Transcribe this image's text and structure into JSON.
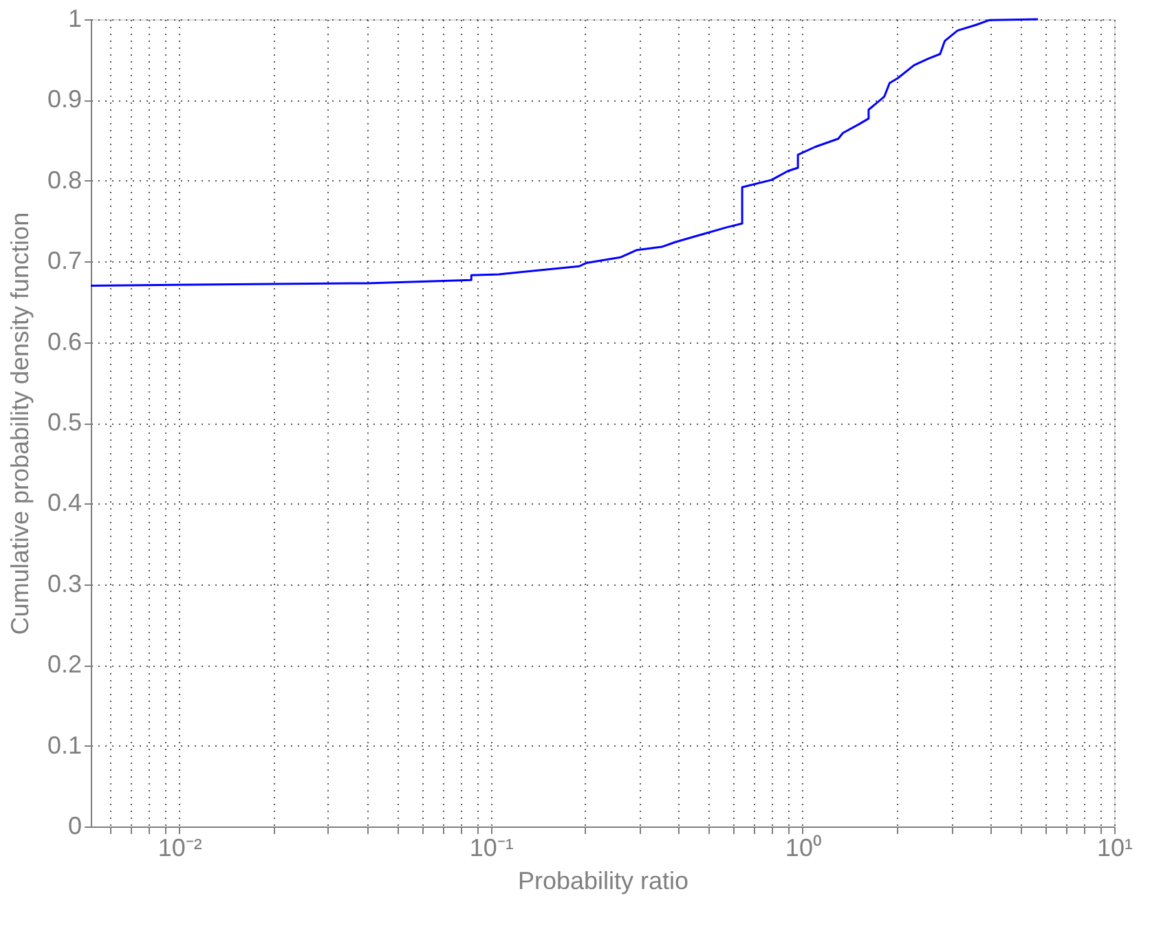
{
  "chart_data": {
    "type": "line",
    "xlabel": "Probability ratio",
    "ylabel": "Cumulative probability density function",
    "x": [
      0.0052,
      0.04,
      0.0865,
      0.0865,
      0.106,
      0.192,
      0.202,
      0.26,
      0.293,
      0.353,
      0.391,
      0.471,
      0.568,
      0.64,
      0.64,
      0.796,
      0.897,
      0.966,
      0.966,
      1.099,
      1.302,
      1.346,
      1.517,
      1.629,
      1.629,
      1.828,
      1.902,
      2.02,
      2.278,
      2.522,
      2.763,
      2.858,
      3.143,
      3.6,
      3.98,
      5.69
    ],
    "series": [
      {
        "color": "#0000ff",
        "values": [
          0.67,
          0.673,
          0.677,
          0.683,
          0.684,
          0.694,
          0.698,
          0.705,
          0.714,
          0.718,
          0.724,
          0.733,
          0.742,
          0.747,
          0.792,
          0.801,
          0.812,
          0.816,
          0.832,
          0.842,
          0.852,
          0.859,
          0.87,
          0.877,
          0.888,
          0.904,
          0.921,
          0.927,
          0.943,
          0.951,
          0.957,
          0.973,
          0.986,
          0.993,
          0.999,
          1.0
        ]
      }
    ],
    "log": "x",
    "xlim": [
      0.0052,
      10
    ],
    "ylim": [
      0,
      1
    ],
    "xticks": [
      {
        "value": 0.006,
        "label": null
      },
      {
        "value": 0.007,
        "label": null
      },
      {
        "value": 0.008,
        "label": null
      },
      {
        "value": 0.009,
        "label": null
      },
      {
        "value": 0.01,
        "label": "10⁻²"
      },
      {
        "value": 0.02,
        "label": null
      },
      {
        "value": 0.03,
        "label": null
      },
      {
        "value": 0.04,
        "label": null
      },
      {
        "value": 0.05,
        "label": null
      },
      {
        "value": 0.06,
        "label": null
      },
      {
        "value": 0.07,
        "label": null
      },
      {
        "value": 0.08,
        "label": null
      },
      {
        "value": 0.09,
        "label": null
      },
      {
        "value": 0.1,
        "label": "10⁻¹"
      },
      {
        "value": 0.2,
        "label": null
      },
      {
        "value": 0.3,
        "label": null
      },
      {
        "value": 0.4,
        "label": null
      },
      {
        "value": 0.5,
        "label": null
      },
      {
        "value": 0.6,
        "label": null
      },
      {
        "value": 0.7,
        "label": null
      },
      {
        "value": 0.8,
        "label": null
      },
      {
        "value": 0.9,
        "label": null
      },
      {
        "value": 1,
        "label": "10⁰"
      },
      {
        "value": 2,
        "label": null
      },
      {
        "value": 3,
        "label": null
      },
      {
        "value": 4,
        "label": null
      },
      {
        "value": 5,
        "label": null
      },
      {
        "value": 6,
        "label": null
      },
      {
        "value": 7,
        "label": null
      },
      {
        "value": 8,
        "label": null
      },
      {
        "value": 9,
        "label": null
      },
      {
        "value": 10,
        "label": "10¹"
      }
    ],
    "yticks": [
      0,
      0.1,
      0.2,
      0.3,
      0.4,
      0.5,
      0.6,
      0.7,
      0.8,
      0.9,
      1
    ],
    "grid": true,
    "legend": false,
    "marker": "none",
    "line_style": "solid"
  }
}
